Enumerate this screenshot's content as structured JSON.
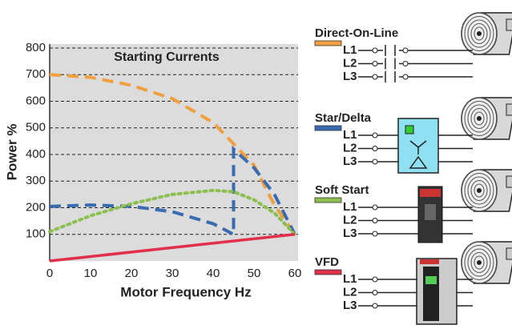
{
  "chart_data": {
    "type": "line",
    "title": "Starting Currents",
    "xlabel": "Motor Frequency Hz",
    "ylabel": "Power %",
    "xlim": [
      0,
      60
    ],
    "xticks": [
      0,
      10,
      20,
      30,
      40,
      50,
      60
    ],
    "ylim": [
      0,
      800
    ],
    "yticks": [
      100,
      200,
      300,
      400,
      500,
      600,
      700,
      800
    ],
    "grid": true,
    "series": [
      {
        "name": "Direct-On-Line",
        "color": "#f0a040",
        "style": "dashed",
        "x": [
          0,
          10,
          20,
          30,
          40,
          45,
          50,
          55,
          60
        ],
        "values": [
          700,
          690,
          660,
          610,
          520,
          440,
          360,
          210,
          100
        ]
      },
      {
        "name": "Star/Delta",
        "color": "#3a6bb0",
        "style": "dashed",
        "x": [
          0,
          10,
          20,
          30,
          40,
          45,
          45,
          50,
          55,
          60
        ],
        "values": [
          205,
          210,
          205,
          185,
          140,
          100,
          420,
          350,
          250,
          100
        ]
      },
      {
        "name": "Soft Start",
        "color": "#8cbf50",
        "style": "dotted",
        "x": [
          0,
          10,
          20,
          30,
          40,
          45,
          50,
          55,
          60
        ],
        "values": [
          110,
          170,
          215,
          250,
          265,
          260,
          230,
          180,
          100
        ]
      },
      {
        "name": "VFD",
        "color": "#e0304a",
        "style": "solid",
        "x": [
          0,
          60
        ],
        "values": [
          0,
          100
        ]
      }
    ]
  },
  "phases": [
    "L1",
    "L2",
    "L3"
  ]
}
